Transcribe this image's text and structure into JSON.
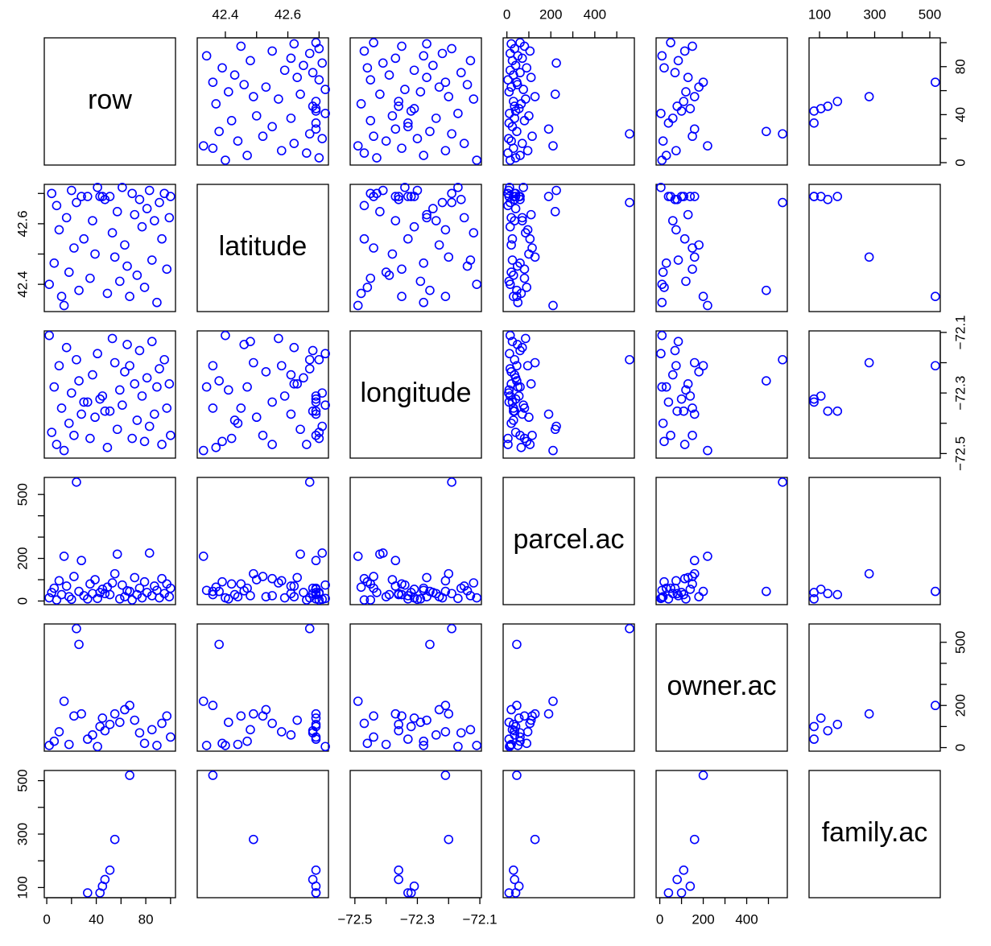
{
  "chart_data": {
    "type": "scatter-matrix",
    "color": "#0000ff",
    "variables": [
      {
        "name": "row",
        "lim": [
          -2,
          104
        ],
        "ticks": [
          0,
          20,
          40,
          60,
          80,
          100
        ],
        "x_tick_labels": [
          0,
          40,
          80
        ],
        "y_tick_labels": [
          0,
          40,
          80
        ],
        "values": [
          2,
          4,
          6,
          8,
          10,
          12,
          14,
          16,
          18,
          20,
          22,
          24,
          26,
          28,
          30,
          33,
          35,
          37,
          39,
          41,
          43,
          45,
          47,
          49,
          51,
          53,
          55,
          57,
          59,
          61,
          63,
          65,
          67,
          69,
          71,
          73,
          75,
          77,
          79,
          81,
          83,
          85,
          87,
          89,
          91,
          93,
          95,
          97,
          99,
          100
        ]
      },
      {
        "name": "latitude",
        "lim": [
          42.31,
          42.73
        ],
        "ticks": [
          42.4,
          42.5,
          42.6,
          42.7
        ],
        "x_tick_labels": [
          42.4,
          42.6
        ],
        "y_tick_labels": [
          42.4,
          42.6
        ],
        "values": [
          42.4,
          42.7,
          42.47,
          42.66,
          42.58,
          42.36,
          42.33,
          42.62,
          42.44,
          42.71,
          42.52,
          42.67,
          42.38,
          42.69,
          42.55,
          42.69,
          42.42,
          42.61,
          42.5,
          42.72,
          42.69,
          42.69,
          42.68,
          42.37,
          42.69,
          42.57,
          42.49,
          42.64,
          42.41,
          42.72,
          42.53,
          42.46,
          42.36,
          42.7,
          42.63,
          42.43,
          42.68,
          42.59,
          42.39,
          42.65,
          42.71,
          42.48,
          42.61,
          42.34,
          42.67,
          42.55,
          42.7,
          42.45,
          42.62,
          42.69
        ]
      },
      {
        "name": "longitude",
        "lim": [
          -72.515,
          -72.095
        ],
        "ticks": [
          -72.5,
          -72.4,
          -72.3,
          -72.2,
          -72.1
        ],
        "x_tick_labels": [
          {
            "value": -72.5,
            "label": "−72.5"
          },
          {
            "value": -72.3,
            "label": "−72.3"
          },
          {
            "value": -72.1,
            "label": "−72.1"
          }
        ],
        "y_tick_labels": [
          {
            "value": -72.5,
            "label": "−72.5"
          },
          {
            "value": -72.3,
            "label": "−72.3"
          },
          {
            "value": -72.1,
            "label": "−72.1"
          }
        ],
        "values": [
          -72.11,
          -72.43,
          -72.28,
          -72.47,
          -72.21,
          -72.35,
          -72.49,
          -72.15,
          -72.4,
          -72.3,
          -72.44,
          -72.19,
          -72.26,
          -72.37,
          -72.33,
          -72.33,
          -72.45,
          -72.24,
          -72.38,
          -72.17,
          -72.32,
          -72.31,
          -72.36,
          -72.48,
          -72.36,
          -72.12,
          -72.2,
          -72.42,
          -72.29,
          -72.34,
          -72.23,
          -72.14,
          -72.21,
          -72.45,
          -72.27,
          -72.39,
          -72.16,
          -72.31,
          -72.46,
          -72.25,
          -72.41,
          -72.13,
          -72.37,
          -72.28,
          -72.22,
          -72.47,
          -72.19,
          -72.35,
          -72.27,
          -72.44
        ]
      },
      {
        "name": "parcel.ac",
        "lim": [
          -17,
          580
        ],
        "ticks": [
          0,
          100,
          200,
          300,
          400,
          500
        ],
        "x_tick_labels": [
          0,
          200,
          400
        ],
        "y_tick_labels": [
          0,
          200,
          500
        ],
        "values": [
          15,
          40,
          60,
          5,
          95,
          30,
          210,
          70,
          20,
          8,
          115,
          558,
          45,
          190,
          25,
          10,
          80,
          35,
          100,
          12,
          40,
          55,
          35,
          65,
          30,
          85,
          128,
          220,
          10,
          75,
          20,
          48,
          45,
          5,
          110,
          30,
          60,
          15,
          90,
          40,
          225,
          25,
          70,
          50,
          15,
          105,
          35,
          80,
          20,
          60
        ]
      },
      {
        "name": "owner.ac",
        "lim": [
          -17,
          587
        ],
        "ticks": [
          0,
          100,
          200,
          300,
          400,
          500
        ],
        "x_tick_labels": [
          0,
          200,
          400
        ],
        "y_tick_labels": [
          0,
          200,
          500
        ],
        "values": [
          10,
          null,
          30,
          null,
          75,
          null,
          220,
          null,
          15,
          null,
          150,
          565,
          490,
          160,
          null,
          40,
          null,
          60,
          null,
          5,
          100,
          140,
          80,
          null,
          110,
          null,
          160,
          null,
          120,
          null,
          180,
          null,
          200,
          null,
          130,
          null,
          70,
          null,
          20,
          null,
          null,
          85,
          null,
          10,
          null,
          115,
          null,
          150,
          null,
          50
        ]
      },
      {
        "name": "family.ac",
        "lim": [
          62,
          538
        ],
        "ticks": [
          100,
          200,
          300,
          400,
          500
        ],
        "x_tick_labels": [
          100,
          300,
          500
        ],
        "y_tick_labels": [
          100,
          300,
          500
        ],
        "values": [
          null,
          null,
          null,
          null,
          null,
          null,
          null,
          null,
          null,
          null,
          null,
          null,
          null,
          null,
          null,
          80,
          null,
          null,
          null,
          null,
          80,
          105,
          130,
          null,
          165,
          null,
          280,
          null,
          null,
          null,
          null,
          null,
          520,
          null,
          null,
          null,
          null,
          null,
          null,
          null,
          null,
          null,
          null,
          null,
          null,
          null,
          null,
          null,
          null,
          null
        ]
      }
    ]
  }
}
